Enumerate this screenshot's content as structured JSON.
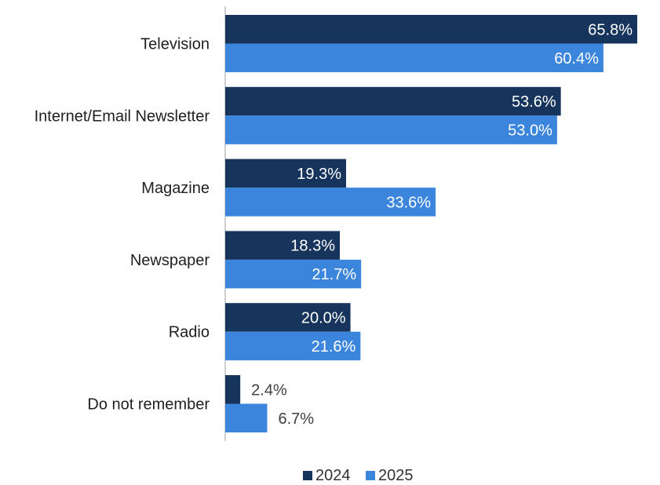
{
  "chart_data": {
    "type": "bar",
    "orientation": "horizontal",
    "categories": [
      "Television",
      "Internet/Email Newsletter",
      "Magazine",
      "Newspaper",
      "Radio",
      "Do not remember"
    ],
    "series": [
      {
        "name": "2024",
        "color": "#17355c",
        "values": [
          65.8,
          53.6,
          19.3,
          18.3,
          20.0,
          2.4
        ],
        "labels": [
          "65.8%",
          "53.6%",
          "19.3%",
          "18.3%",
          "20.0%",
          "2.4%"
        ]
      },
      {
        "name": "2025",
        "color": "#3b86dc",
        "values": [
          60.4,
          53.0,
          33.6,
          21.7,
          21.6,
          6.7
        ],
        "labels": [
          "60.4%",
          "53.0%",
          "33.6%",
          "21.7%",
          "21.6%",
          "6.7%"
        ]
      }
    ],
    "xlim": [
      0,
      65.8
    ],
    "grid": false,
    "legend_position": "bottom"
  }
}
